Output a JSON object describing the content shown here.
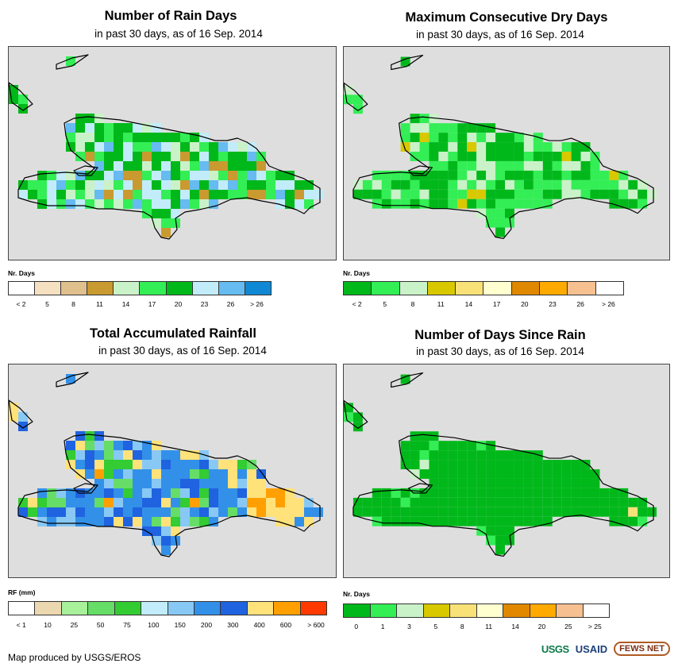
{
  "panels": [
    {
      "title": "Number of Rain Days",
      "subtitle": "in past 30 days, as of 16 Sep. 2014",
      "legend_title": "Nr. Days",
      "legend_colors": [
        "#ffffff",
        "#f5e0c2",
        "#e0c08c",
        "#c99a30",
        "#caf2c8",
        "#33ee55",
        "#00b81a",
        "#c2ecfa",
        "#66bbf0",
        "#1188d4"
      ],
      "legend_labels": [
        "< 2",
        "5",
        "8",
        "11",
        "14",
        "17",
        "20",
        "23",
        "26",
        "> 26"
      ]
    },
    {
      "title": "Maximum Consecutive Dry Days",
      "subtitle": "in past 30 days, as of 16 Sep. 2014",
      "legend_title": "Nr. Days",
      "legend_colors": [
        "#00b81a",
        "#33ee55",
        "#caf2c8",
        "#d8c800",
        "#f8e278",
        "#ffffd0",
        "#e08800",
        "#ffaa00",
        "#f6c090",
        "#ffffff"
      ],
      "legend_labels": [
        "< 2",
        "5",
        "8",
        "11",
        "14",
        "17",
        "20",
        "23",
        "26",
        "> 26"
      ]
    },
    {
      "title": "Total Accumulated Rainfall",
      "subtitle": "in past 30 days, as of 16 Sep. 2014",
      "legend_title": "RF (mm)",
      "legend_colors": [
        "#ffffff",
        "#ecd8b0",
        "#a8f09a",
        "#66dd66",
        "#33cc33",
        "#c2ecfa",
        "#88c8f4",
        "#3390e8",
        "#1f63e0",
        "#ffe27a",
        "#ffa000",
        "#ff3a00"
      ],
      "legend_labels": [
        "< 1",
        "10",
        "25",
        "50",
        "75",
        "100",
        "150",
        "200",
        "300",
        "400",
        "600",
        "> 600"
      ]
    },
    {
      "title": "Number of Days Since Rain",
      "subtitle": "in past 30 days, as of 16 Sep. 2014",
      "legend_title": "Nr. Days",
      "legend_colors": [
        "#00b81a",
        "#33ee55",
        "#caf2c8",
        "#d8c800",
        "#f8e278",
        "#ffffd0",
        "#e08800",
        "#ffaa00",
        "#f6c090",
        "#ffffff"
      ],
      "legend_labels": [
        "0",
        "1",
        "3",
        "5",
        "8",
        "11",
        "14",
        "20",
        "25",
        "> 25"
      ]
    }
  ],
  "footer": {
    "credit": "Map produced by USGS/EROS",
    "logos": [
      "USGS",
      "USAID",
      "FEWS NET"
    ]
  }
}
